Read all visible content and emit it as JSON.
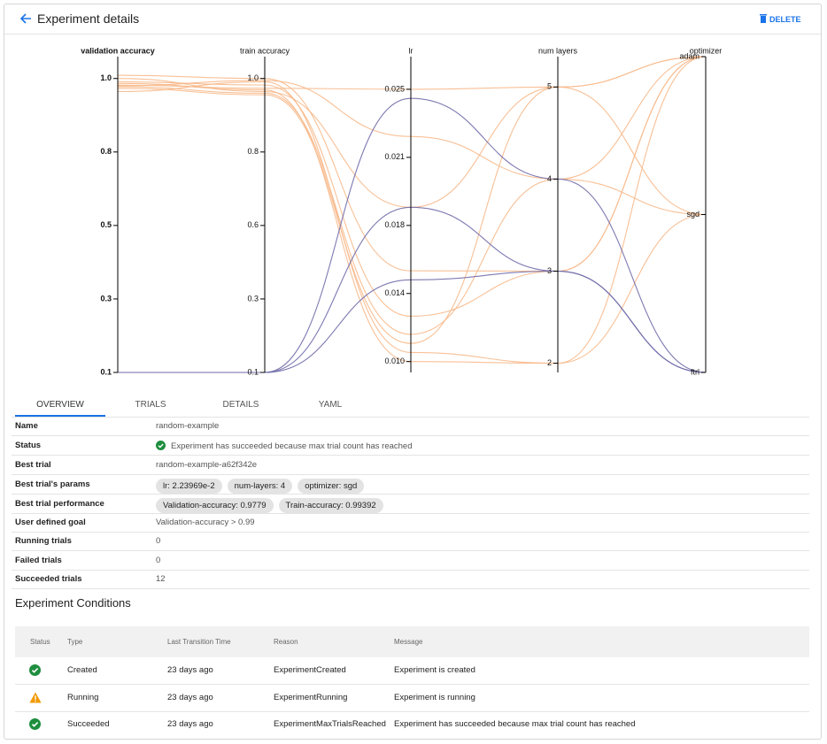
{
  "header": {
    "title": "Experiment details",
    "delete": "DELETE"
  },
  "chart_data": {
    "type": "parallel",
    "axes": [
      {
        "label": "validation accuracy",
        "ylim": [
          0.1,
          1.067
        ],
        "ticks": [
          {
            "value": 0.1,
            "label": "0.1"
          },
          {
            "value": 0.325,
            "label": "0.3"
          },
          {
            "value": 0.55,
            "label": "0.5"
          },
          {
            "value": 0.775,
            "label": "0.8"
          },
          {
            "value": 1.0,
            "label": "1.0"
          }
        ]
      },
      {
        "label": "train accuracy",
        "ylim": [
          0.1,
          1.067
        ],
        "ticks": [
          {
            "value": 0.1,
            "label": "0.1"
          },
          {
            "value": 0.325,
            "label": "0.3"
          },
          {
            "value": 0.55,
            "label": "0.6"
          },
          {
            "value": 0.775,
            "label": "0.8"
          },
          {
            "value": 1.0,
            "label": "1.0"
          }
        ]
      },
      {
        "label": "lr",
        "ylim": [
          0.0094,
          0.0268
        ],
        "ticks": [
          {
            "value": 0.01,
            "label": "0.010"
          },
          {
            "value": 0.01375,
            "label": "0.014"
          },
          {
            "value": 0.0175,
            "label": "0.018"
          },
          {
            "value": 0.02125,
            "label": "0.021"
          },
          {
            "value": 0.025,
            "label": "0.025"
          }
        ]
      },
      {
        "label": "num layers",
        "ylim": [
          1.9,
          5.33
        ],
        "ticks": [
          2,
          3,
          4,
          5
        ]
      },
      {
        "label": "optimizer",
        "categories": [
          "adam",
          "sgd",
          "ftrl"
        ]
      }
    ],
    "trials": [
      {
        "color": "#f7b98b",
        "values": [
          0.9779,
          0.99392,
          0.0224,
          4,
          "sgd"
        ]
      },
      {
        "color": "#f7b98b",
        "values": [
          0.98,
          0.97,
          0.025,
          5,
          "adam"
        ]
      },
      {
        "color": "#f7b98b",
        "values": [
          1.0,
          0.96,
          0.0185,
          5,
          "adam"
        ]
      },
      {
        "color": "#f7b98b",
        "values": [
          0.99,
          0.98,
          0.0125,
          3,
          "adam"
        ]
      },
      {
        "color": "#f7b98b",
        "values": [
          0.97,
          0.95,
          0.011,
          5,
          "sgd"
        ]
      },
      {
        "color": "#f7b98b",
        "values": [
          0.96,
          0.99,
          0.0105,
          2,
          "adam"
        ]
      },
      {
        "color": "#f7b98b",
        "values": [
          1.01,
          1.0,
          0.015,
          3,
          "adam"
        ]
      },
      {
        "color": "#f7b98b",
        "values": [
          0.985,
          0.965,
          0.01,
          2,
          "sgd"
        ]
      },
      {
        "color": "#f7b98b",
        "values": [
          0.975,
          0.955,
          0.0115,
          4,
          "adam"
        ]
      },
      {
        "color": "#6f6aa8",
        "values": [
          0.1,
          0.1,
          0.0245,
          4,
          "ftrl"
        ]
      },
      {
        "color": "#6f6aa8",
        "values": [
          0.1,
          0.1,
          0.0185,
          3,
          "ftrl"
        ]
      },
      {
        "color": "#6f6aa8",
        "values": [
          0.1,
          0.1,
          0.0145,
          3,
          "ftrl"
        ]
      }
    ]
  },
  "tabs": [
    "OVERVIEW",
    "TRIALS",
    "DETAILS",
    "YAML"
  ],
  "details": {
    "rows": [
      [
        "Name",
        "random-example"
      ],
      [
        "Status",
        "Experiment has succeeded because max trial count has reached"
      ],
      [
        "Best trial",
        "random-example-a62f342e"
      ],
      [
        "Best trial's params",
        [
          "lr: 2.23969e-2",
          "num-layers: 4",
          "optimizer: sgd"
        ]
      ],
      [
        "Best trial performance",
        [
          "Validation-accuracy: 0.9779",
          "Train-accuracy: 0.99392"
        ]
      ],
      [
        "User defined goal",
        "Validation-accuracy > 0.99"
      ],
      [
        "Running trials",
        0
      ],
      [
        "Failed trials",
        0
      ],
      [
        "Succeeded trials",
        12
      ]
    ]
  },
  "conditions": {
    "title": "Experiment Conditions",
    "columns": [
      "Status",
      "Type",
      "Last Transition Time",
      "Reason",
      "Message"
    ],
    "rows": [
      [
        "Created",
        "23 days ago",
        "ExperimentCreated",
        "Experiment is created"
      ],
      [
        "Running",
        "23 days ago",
        "ExperimentRunning",
        "Experiment is running"
      ],
      [
        "Succeeded",
        "23 days ago",
        "ExperimentMaxTrialsReached",
        "Experiment has succeeded because max trial count has reached"
      ]
    ]
  }
}
